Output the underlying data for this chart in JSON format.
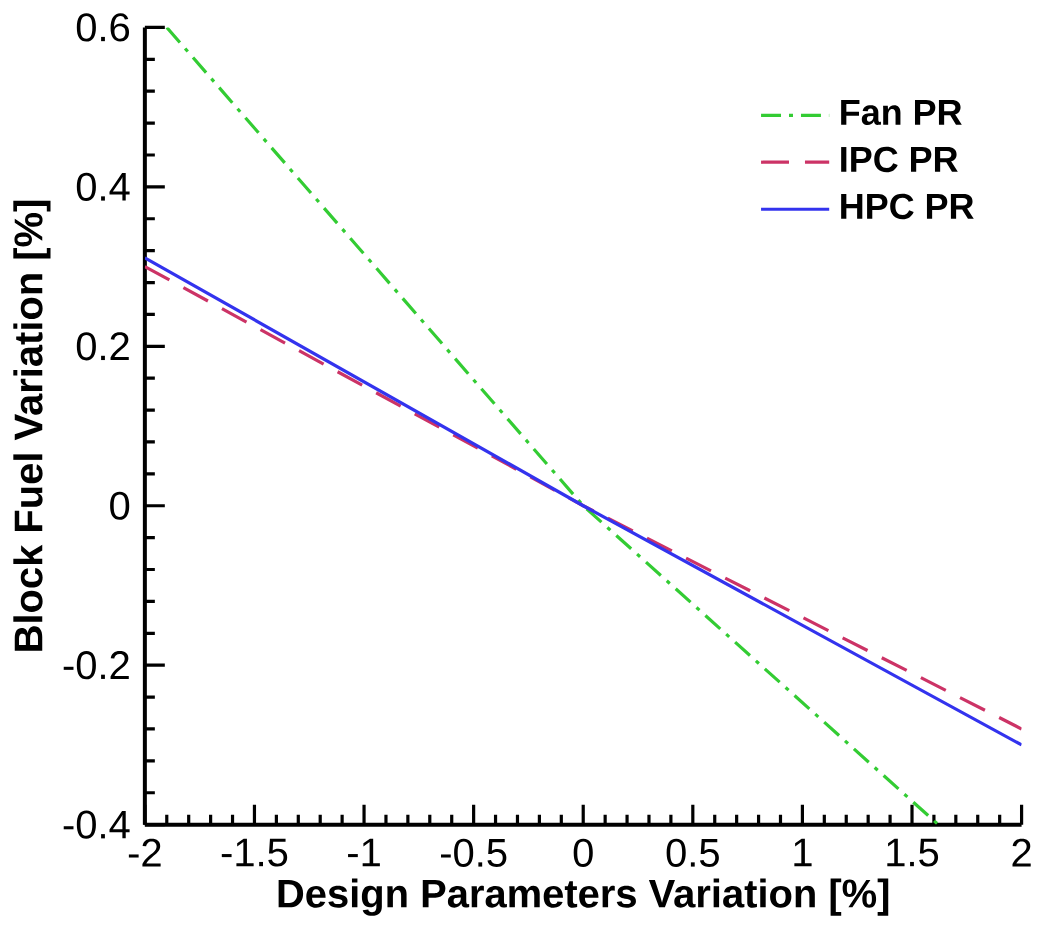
{
  "chart_data": {
    "type": "line",
    "xlabel": "Design Parameters Variation [%]",
    "ylabel": "Block Fuel Variation [%]",
    "xlim": [
      -2,
      2
    ],
    "ylim": [
      -0.4,
      0.6
    ],
    "xticks": [
      -2,
      -1.5,
      -1,
      -0.5,
      0,
      0.5,
      1,
      1.5,
      2
    ],
    "yticks": [
      -0.4,
      -0.2,
      0,
      0.2,
      0.4,
      0.6
    ],
    "grid": false,
    "legend": "top right",
    "marker": "none",
    "series": [
      {
        "name": "Fan PR",
        "color": "#33cc33",
        "line_style": "dashdot",
        "x": [
          -1.9,
          0,
          1.62
        ],
        "values": [
          0.6,
          0,
          -0.4
        ]
      },
      {
        "name": "IPC PR",
        "color": "#cc3366",
        "line_style": "dashed",
        "x": [
          -2,
          0,
          2
        ],
        "values": [
          0.3,
          0,
          -0.28
        ]
      },
      {
        "name": "HPC PR",
        "color": "#3333ee",
        "line_style": "solid",
        "x": [
          -2,
          0,
          2
        ],
        "values": [
          0.311,
          0,
          -0.3
        ]
      }
    ]
  }
}
